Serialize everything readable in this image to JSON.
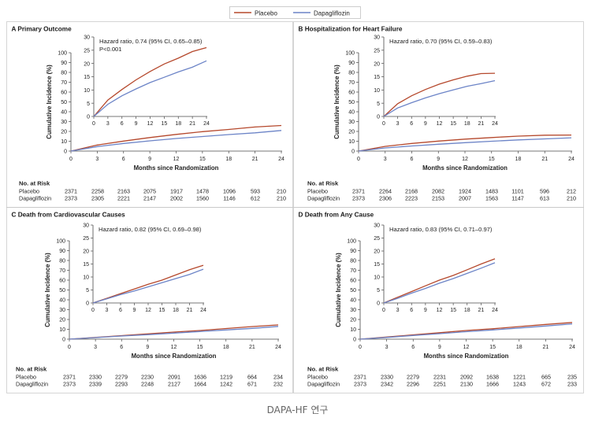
{
  "legend": {
    "items": [
      {
        "label": "Placebo",
        "color": "#b5482c"
      },
      {
        "label": "Dapagliflozin",
        "color": "#6c84c7"
      }
    ]
  },
  "caption": "DAPA-HF 연구",
  "risk_table": {
    "header": "No. at Risk",
    "row_labels": [
      "Placebo",
      "Dapagliflozin"
    ]
  },
  "axis_labels": {
    "y": "Cumulative Incidence (%)",
    "x": "Months since Randomization"
  },
  "chart_data": [
    {
      "type": "line",
      "panel": "A",
      "title": "Primary Outcome",
      "xlabel": "Months since Randomization",
      "ylabel": "Cumulative Incidence (%)",
      "xlim": [
        0,
        24
      ],
      "ylim": [
        0,
        100
      ],
      "xticks": [
        0,
        3,
        6,
        9,
        12,
        15,
        18,
        21,
        24
      ],
      "yticks": [
        0,
        10,
        20,
        30,
        40,
        50,
        60,
        70,
        80,
        90,
        100
      ],
      "inset": {
        "xlim": [
          0,
          24
        ],
        "ylim": [
          0,
          30
        ],
        "xticks": [
          0,
          3,
          6,
          9,
          12,
          15,
          18,
          21,
          24
        ],
        "yticks": [
          0,
          5,
          10,
          15,
          20,
          25,
          30
        ],
        "annotation": [
          "Hazard ratio, 0.74 (95% CI, 0.65–0.85)",
          "P<0.001"
        ]
      },
      "x": [
        0,
        3,
        6,
        9,
        12,
        15,
        18,
        21,
        24
      ],
      "series": [
        {
          "name": "Placebo",
          "values": [
            0,
            6.2,
            10.2,
            13.8,
            17.0,
            19.8,
            22.0,
            24.5,
            26.0
          ]
        },
        {
          "name": "Dapagliflozin",
          "values": [
            0,
            4.6,
            7.8,
            10.4,
            12.8,
            14.8,
            16.8,
            18.6,
            21.0
          ]
        }
      ],
      "risk": {
        "times": [
          "0",
          "3",
          "6",
          "9",
          "12",
          "15",
          "18",
          "21",
          "24"
        ],
        "placebo": [
          "2371",
          "2258",
          "2163",
          "2075",
          "1917",
          "1478",
          "1096",
          "593",
          "210"
        ],
        "dapagliflozin": [
          "2373",
          "2305",
          "2221",
          "2147",
          "2002",
          "1560",
          "1146",
          "612",
          "210"
        ]
      }
    },
    {
      "type": "line",
      "panel": "B",
      "title": "Hospitalization for Heart Failure",
      "xlabel": "Months since Randomization",
      "ylabel": "Cumulative Incidence (%)",
      "xlim": [
        0,
        24
      ],
      "ylim": [
        0,
        100
      ],
      "xticks": [
        0,
        3,
        6,
        9,
        12,
        15,
        18,
        21,
        24
      ],
      "yticks": [
        0,
        10,
        20,
        30,
        40,
        50,
        60,
        70,
        80,
        90,
        100
      ],
      "inset": {
        "xlim": [
          0,
          24
        ],
        "ylim": [
          0,
          30
        ],
        "xticks": [
          0,
          3,
          6,
          9,
          12,
          15,
          18,
          21,
          24
        ],
        "yticks": [
          0,
          5,
          10,
          15,
          20,
          25,
          30
        ],
        "annotation": [
          "Hazard ratio, 0.70 (95% CI, 0.59–0.83)"
        ]
      },
      "x": [
        0,
        3,
        6,
        9,
        12,
        15,
        18,
        21,
        24
      ],
      "series": [
        {
          "name": "Placebo",
          "values": [
            0,
            4.8,
            7.8,
            10.2,
            12.2,
            13.8,
            15.2,
            16.2,
            16.3
          ]
        },
        {
          "name": "Dapagliflozin",
          "values": [
            0,
            3.2,
            5.2,
            7.0,
            8.6,
            10.0,
            11.4,
            12.4,
            13.5
          ]
        }
      ],
      "risk": {
        "times": [
          "0",
          "3",
          "6",
          "9",
          "12",
          "15",
          "18",
          "21",
          "24"
        ],
        "placebo": [
          "2371",
          "2264",
          "2168",
          "2082",
          "1924",
          "1483",
          "1101",
          "596",
          "212"
        ],
        "dapagliflozin": [
          "2373",
          "2306",
          "2223",
          "2153",
          "2007",
          "1563",
          "1147",
          "613",
          "210"
        ]
      }
    },
    {
      "type": "line",
      "panel": "C",
      "title": "Death from Cardiovascular Causes",
      "xlabel": "Months since Randomization",
      "ylabel": "Cumulative Incidence (%)",
      "xlim": [
        0,
        24
      ],
      "ylim": [
        0,
        100
      ],
      "xticks": [
        0,
        3,
        6,
        9,
        12,
        15,
        18,
        21,
        24
      ],
      "yticks": [
        0,
        10,
        20,
        30,
        40,
        50,
        60,
        70,
        80,
        90,
        100
      ],
      "inset": {
        "xlim": [
          0,
          24
        ],
        "ylim": [
          0,
          30
        ],
        "xticks": [
          0,
          3,
          6,
          9,
          12,
          15,
          18,
          21,
          24
        ],
        "yticks": [
          0,
          5,
          10,
          15,
          20,
          25,
          30
        ],
        "annotation": [
          "Hazard ratio, 0.82 (95% CI, 0.69–0.98)"
        ]
      },
      "x": [
        0,
        3,
        6,
        9,
        12,
        15,
        18,
        21,
        24
      ],
      "series": [
        {
          "name": "Placebo",
          "values": [
            0,
            1.8,
            3.6,
            5.4,
            7.2,
            8.8,
            10.8,
            12.8,
            14.5
          ]
        },
        {
          "name": "Dapagliflozin",
          "values": [
            0,
            1.6,
            3.2,
            4.6,
            6.2,
            7.8,
            9.4,
            11.0,
            13.0
          ]
        }
      ],
      "risk": {
        "times": [
          "0",
          "3",
          "6",
          "9",
          "12",
          "15",
          "18",
          "21",
          "24"
        ],
        "placebo": [
          "2371",
          "2330",
          "2279",
          "2230",
          "2091",
          "1636",
          "1219",
          "664",
          "234"
        ],
        "dapagliflozin": [
          "2373",
          "2339",
          "2293",
          "2248",
          "2127",
          "1664",
          "1242",
          "671",
          "232"
        ]
      }
    },
    {
      "type": "line",
      "panel": "D",
      "title": "Death from Any Cause",
      "xlabel": "Months since Randomization",
      "ylabel": "Cumulative Incidence (%)",
      "xlim": [
        0,
        24
      ],
      "ylim": [
        0,
        100
      ],
      "xticks": [
        0,
        3,
        6,
        9,
        12,
        15,
        18,
        21,
        24
      ],
      "yticks": [
        0,
        10,
        20,
        30,
        40,
        50,
        60,
        70,
        80,
        90,
        100
      ],
      "inset": {
        "xlim": [
          0,
          24
        ],
        "ylim": [
          0,
          30
        ],
        "xticks": [
          0,
          3,
          6,
          9,
          12,
          15,
          18,
          21,
          24
        ],
        "yticks": [
          0,
          5,
          10,
          15,
          20,
          25,
          30
        ],
        "annotation": [
          "Hazard ratio, 0.83 (95% CI, 0.71–0.97)"
        ]
      },
      "x": [
        0,
        3,
        6,
        9,
        12,
        15,
        18,
        21,
        24
      ],
      "series": [
        {
          "name": "Placebo",
          "values": [
            0,
            2.2,
            4.4,
            6.6,
            8.8,
            10.6,
            12.8,
            15.0,
            17.0
          ]
        },
        {
          "name": "Dapagliflozin",
          "values": [
            0,
            1.8,
            3.8,
            5.6,
            7.6,
            9.4,
            11.4,
            13.4,
            15.5
          ]
        }
      ],
      "risk": {
        "times": [
          "0",
          "3",
          "6",
          "9",
          "12",
          "15",
          "18",
          "21",
          "24"
        ],
        "placebo": [
          "2371",
          "2330",
          "2279",
          "2231",
          "2092",
          "1638",
          "1221",
          "665",
          "235"
        ],
        "dapagliflozin": [
          "2373",
          "2342",
          "2296",
          "2251",
          "2130",
          "1666",
          "1243",
          "672",
          "233"
        ]
      }
    }
  ]
}
